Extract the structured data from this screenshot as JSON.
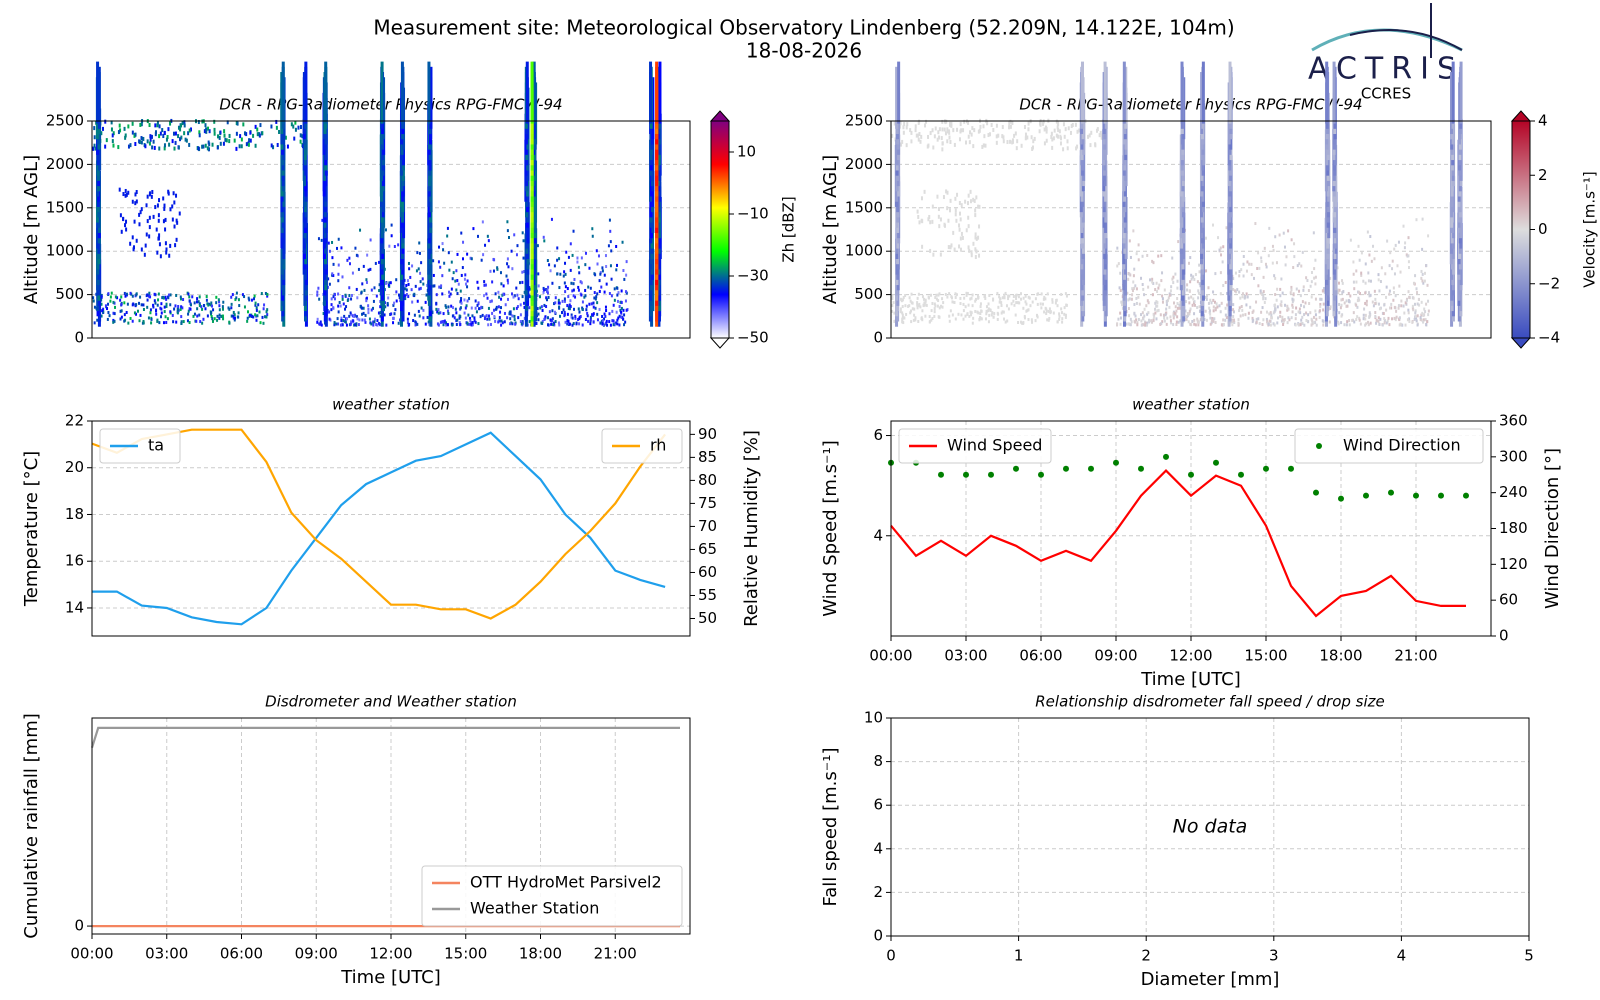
{
  "header": {
    "title": "Measurement site: Meteorological Observatory Lindenberg (52.209N, 14.122E, 104m)",
    "date": "18-08-2026",
    "logo": "ACTRIS",
    "logo_sub": "CCRES"
  },
  "chart_data": [
    {
      "type": "heatmap",
      "title": "DCR - RPG-Radiometer Physics RPG-FMCW-94",
      "y_label": "Altitude [m AGL]",
      "xlim": [
        0,
        24
      ],
      "ylim": [
        0,
        2500
      ],
      "yticks": [
        0,
        500,
        1000,
        1500,
        2000,
        2500
      ],
      "grid": true,
      "colorbar": {
        "label": "Zh [dBZ]",
        "lim": [
          -50,
          20
        ],
        "ticks": [
          {
            "value": -50,
            "label": "−50"
          },
          {
            "value": -30,
            "label": "−30"
          },
          {
            "value": -10,
            "label": "−10"
          },
          10
        ],
        "colors": [
          "#ffffff",
          "#0000ff",
          "#00ff00",
          "#ffff00",
          "#ff0000",
          "#800080"
        ]
      }
    },
    {
      "type": "heatmap",
      "title": "DCR - RPG-Radiometer Physics RPG-FMCW-94",
      "y_label": "Altitude [m AGL]",
      "xlim": [
        0,
        24
      ],
      "ylim": [
        0,
        2500
      ],
      "yticks": [
        0,
        500,
        1000,
        1500,
        2000,
        2500
      ],
      "grid": true,
      "colorbar": {
        "label": "Velocity [m.s⁻¹]",
        "lim": [
          -4,
          4
        ],
        "ticks": [
          {
            "value": -4,
            "label": "−4"
          },
          {
            "value": -2,
            "label": "−2"
          },
          0,
          2,
          4
        ],
        "colors": [
          "#3a4cc0",
          "#dddddd",
          "#b40426"
        ]
      }
    },
    {
      "type": "line",
      "title": "weather station",
      "y_label": "Temperature [°C]",
      "y2_label": "Relative Humidity [%]",
      "xlim": [
        0,
        24
      ],
      "ylim": [
        12.8,
        22
      ],
      "yticks": [
        14,
        16,
        18,
        20,
        22
      ],
      "y2lim": [
        46.2,
        92.9
      ],
      "y2ticks": [
        50,
        55,
        60,
        65,
        70,
        75,
        80,
        85,
        90
      ],
      "grid": true,
      "x": [
        0,
        1,
        2,
        3,
        4,
        5,
        6,
        7,
        8,
        9,
        10,
        11,
        12,
        13,
        14,
        15,
        16,
        17,
        18,
        19,
        20,
        21,
        22,
        23
      ],
      "series": [
        {
          "name": "ta",
          "color": "#1f9fec",
          "legend": "upper left",
          "values": [
            14.7,
            14.7,
            14.1,
            14.0,
            13.6,
            13.4,
            13.3,
            14.0,
            15.6,
            17.0,
            18.4,
            19.3,
            19.8,
            20.3,
            20.5,
            21.0,
            21.5,
            20.5,
            19.5,
            18.0,
            17.0,
            15.6,
            15.2,
            14.9
          ]
        },
        {
          "name": "rh",
          "color": "#ffa500",
          "axis": "y2",
          "legend": "upper right",
          "values": [
            88,
            86,
            89,
            90,
            91,
            91,
            91,
            84,
            73,
            67,
            63,
            58,
            53,
            53,
            52,
            52,
            50,
            53,
            58,
            64,
            69,
            75,
            83,
            90
          ]
        }
      ]
    },
    {
      "type": "line",
      "title": "weather station",
      "x_label": "Time [UTC]",
      "y_label": "Wind Speed [m.s⁻¹]",
      "y2_label": "Wind Direction [°]",
      "xlim": [
        0,
        24
      ],
      "ylim": [
        2.0,
        6.29
      ],
      "yticks": [
        4,
        6
      ],
      "y2lim": [
        0,
        360
      ],
      "y2ticks": [
        0,
        60,
        120,
        180,
        240,
        300,
        360
      ],
      "grid": true,
      "xticks": [
        {
          "value": 0,
          "label": "00:00"
        },
        {
          "value": 3,
          "label": "03:00"
        },
        {
          "value": 6,
          "label": "06:00"
        },
        {
          "value": 9,
          "label": "09:00"
        },
        {
          "value": 12,
          "label": "12:00"
        },
        {
          "value": 15,
          "label": "15:00"
        },
        {
          "value": 18,
          "label": "18:00"
        },
        {
          "value": 21,
          "label": "21:00"
        }
      ],
      "x": [
        0,
        1,
        2,
        3,
        4,
        5,
        6,
        7,
        8,
        9,
        10,
        11,
        12,
        13,
        14,
        15,
        16,
        17,
        18,
        19,
        20,
        21,
        22,
        23
      ],
      "series": [
        {
          "name": "Wind Speed",
          "color": "#ff0000",
          "legend": "upper left",
          "values": [
            4.2,
            3.6,
            3.9,
            3.6,
            4.0,
            3.8,
            3.5,
            3.7,
            3.5,
            4.1,
            4.8,
            5.3,
            4.8,
            5.2,
            5.0,
            4.2,
            3.0,
            2.4,
            2.8,
            2.9,
            3.2,
            2.7,
            2.6,
            2.6
          ]
        },
        {
          "name": "Wind Direction",
          "color": "#008000",
          "axis": "y2",
          "mode": "markers",
          "legend": "upper right",
          "values": [
            290,
            290,
            270,
            270,
            270,
            280,
            270,
            280,
            280,
            290,
            280,
            300,
            270,
            290,
            270,
            280,
            280,
            240,
            230,
            235,
            240,
            235,
            235,
            235
          ]
        }
      ]
    },
    {
      "type": "line",
      "title": "Disdrometer and Weather station",
      "x_label": "Time [UTC]",
      "y_label": "Cumulative rainfall [mm]",
      "xlim": [
        0,
        24
      ],
      "ylim": [
        -0.04,
        1.05
      ],
      "yticks": [
        0
      ],
      "grid": true,
      "xticks": [
        {
          "value": 0,
          "label": "00:00"
        },
        {
          "value": 3,
          "label": "03:00"
        },
        {
          "value": 6,
          "label": "06:00"
        },
        {
          "value": 9,
          "label": "09:00"
        },
        {
          "value": 12,
          "label": "12:00"
        },
        {
          "value": 15,
          "label": "15:00"
        },
        {
          "value": 18,
          "label": "18:00"
        },
        {
          "value": 21,
          "label": "21:00"
        }
      ],
      "x": [
        0,
        0.25,
        23.6
      ],
      "series": [
        {
          "name": "OTT HydroMet Parsivel2",
          "color": "#f4845f",
          "legend": "lower right",
          "values": [
            0,
            0,
            0
          ]
        },
        {
          "name": "Weather Station",
          "color": "#999999",
          "legend": "lower right",
          "values": [
            0.9,
            1.0,
            1.0
          ]
        }
      ]
    },
    {
      "type": "scatter",
      "title": "Relationship disdrometer fall speed / drop size",
      "x_label": "Diameter [mm]",
      "y_label": "Fall speed [m.s⁻¹]",
      "xlim": [
        0,
        5
      ],
      "xticks": [
        0,
        1,
        2,
        3,
        4,
        5
      ],
      "ylim": [
        0,
        10
      ],
      "yticks": [
        0,
        2,
        4,
        6,
        8,
        10
      ],
      "grid": true,
      "annotation": "No data"
    }
  ]
}
